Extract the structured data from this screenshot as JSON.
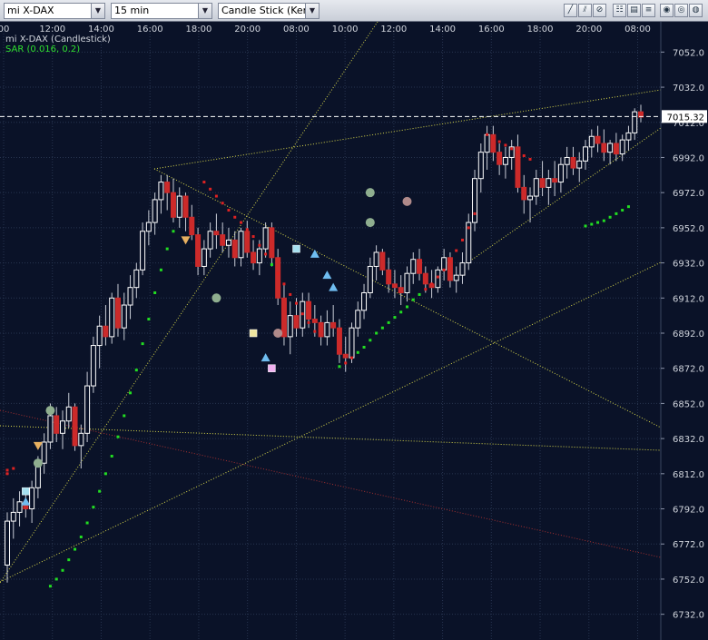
{
  "toolbar": {
    "symbol": "mi X-DAX",
    "interval": "15 min",
    "chart_type": "Candle Stick (Kerze",
    "tools": [
      "line-draw-icon",
      "parallel-draw-icon",
      "fibonacci-icon",
      "grid-icon",
      "table-icon",
      "zoom-in-icon",
      "zoom-out-icon",
      "settings-icon"
    ]
  },
  "legend": {
    "instrument": "mi X-DAX (Candlestick)",
    "indicator": "SAR (0.016, 0.2)"
  },
  "colors": {
    "background": "#0a1228",
    "grid": "#27344f",
    "candle_up": "#ffffff",
    "candle_down": "#cc2a2a",
    "sar_up": "#22dd22",
    "sar_down": "#dd2222",
    "trendline": "#d8d84a",
    "trendline_red": "#a53030",
    "price_line": "#ffffff"
  },
  "chart_data": {
    "type": "candlestick",
    "title": "mi X-DAX (Candlestick)",
    "xlabel": "",
    "ylabel": "",
    "ylim": [
      6722,
      7062
    ],
    "y_ticks": [
      7052,
      7032,
      7012,
      6992,
      6972,
      6952,
      6932,
      6912,
      6892,
      6872,
      6852,
      6832,
      6812,
      6792,
      6772,
      6752,
      6732
    ],
    "y_tick_labels": [
      "7052.0",
      "7032.0",
      "7012.0",
      "6992.0",
      "6972.0",
      "6952.0",
      "6932.0",
      "6912.0",
      "6892.0",
      "6872.0",
      "6852.0",
      "6832.0",
      "6812.0",
      "6792.0",
      "6772.0",
      "6752.0",
      "6732.0"
    ],
    "x_tick_labels": [
      "00",
      "12:00",
      "14:00",
      "16:00",
      "18:00",
      "20:00",
      "08:00",
      "10:00",
      "12:00",
      "14:00",
      "16:00",
      "18:00",
      "20:00",
      "08:00"
    ],
    "last_price": 7015.32,
    "last_price_label": "7015.32",
    "grid": true,
    "series": [
      {
        "name": "mi X-DAX (Candlestick)",
        "ohlc": [
          [
            6760,
            6790,
            6750,
            6785
          ],
          [
            6785,
            6798,
            6775,
            6790
          ],
          [
            6790,
            6802,
            6782,
            6796
          ],
          [
            6796,
            6803,
            6787,
            6792
          ],
          [
            6792,
            6808,
            6784,
            6804
          ],
          [
            6804,
            6822,
            6798,
            6818
          ],
          [
            6818,
            6835,
            6812,
            6830
          ],
          [
            6830,
            6852,
            6826,
            6845
          ],
          [
            6845,
            6850,
            6830,
            6835
          ],
          [
            6835,
            6848,
            6826,
            6842
          ],
          [
            6842,
            6858,
            6838,
            6850
          ],
          [
            6850,
            6852,
            6825,
            6828
          ],
          [
            6828,
            6840,
            6815,
            6835
          ],
          [
            6835,
            6870,
            6830,
            6862
          ],
          [
            6862,
            6890,
            6858,
            6885
          ],
          [
            6885,
            6902,
            6872,
            6896
          ],
          [
            6896,
            6908,
            6885,
            6890
          ],
          [
            6890,
            6915,
            6886,
            6912
          ],
          [
            6912,
            6920,
            6890,
            6895
          ],
          [
            6895,
            6915,
            6888,
            6908
          ],
          [
            6908,
            6925,
            6900,
            6918
          ],
          [
            6918,
            6932,
            6912,
            6928
          ],
          [
            6928,
            6955,
            6925,
            6950
          ],
          [
            6950,
            6962,
            6942,
            6955
          ],
          [
            6955,
            6972,
            6948,
            6968
          ],
          [
            6968,
            6982,
            6960,
            6978
          ],
          [
            6978,
            6982,
            6962,
            6972
          ],
          [
            6972,
            6980,
            6955,
            6958
          ],
          [
            6958,
            6975,
            6952,
            6970
          ],
          [
            6970,
            6972,
            6950,
            6958
          ],
          [
            6958,
            6965,
            6945,
            6948
          ],
          [
            6948,
            6952,
            6925,
            6930
          ],
          [
            6930,
            6945,
            6925,
            6940
          ],
          [
            6940,
            6955,
            6935,
            6950
          ],
          [
            6950,
            6960,
            6940,
            6948
          ],
          [
            6948,
            6955,
            6938,
            6942
          ],
          [
            6942,
            6952,
            6935,
            6945
          ],
          [
            6945,
            6950,
            6930,
            6935
          ],
          [
            6935,
            6952,
            6930,
            6950
          ],
          [
            6950,
            6956,
            6935,
            6938
          ],
          [
            6938,
            6945,
            6928,
            6932
          ],
          [
            6932,
            6945,
            6925,
            6940
          ],
          [
            6940,
            6955,
            6935,
            6952
          ],
          [
            6952,
            6955,
            6930,
            6935
          ],
          [
            6935,
            6940,
            6908,
            6912
          ],
          [
            6912,
            6920,
            6885,
            6890
          ],
          [
            6890,
            6910,
            6880,
            6902
          ],
          [
            6902,
            6912,
            6890,
            6895
          ],
          [
            6895,
            6915,
            6890,
            6910
          ],
          [
            6910,
            6915,
            6895,
            6900
          ],
          [
            6900,
            6908,
            6890,
            6898
          ],
          [
            6898,
            6902,
            6885,
            6890
          ],
          [
            6890,
            6905,
            6885,
            6898
          ],
          [
            6898,
            6908,
            6890,
            6895
          ],
          [
            6895,
            6900,
            6875,
            6880
          ],
          [
            6880,
            6890,
            6870,
            6878
          ],
          [
            6878,
            6898,
            6875,
            6895
          ],
          [
            6895,
            6910,
            6890,
            6905
          ],
          [
            6905,
            6920,
            6900,
            6915
          ],
          [
            6915,
            6935,
            6912,
            6930
          ],
          [
            6930,
            6942,
            6922,
            6938
          ],
          [
            6938,
            6940,
            6925,
            6928
          ],
          [
            6928,
            6935,
            6915,
            6920
          ],
          [
            6920,
            6928,
            6912,
            6918
          ],
          [
            6918,
            6925,
            6908,
            6915
          ],
          [
            6915,
            6930,
            6910,
            6926
          ],
          [
            6926,
            6938,
            6920,
            6934
          ],
          [
            6934,
            6940,
            6922,
            6926
          ],
          [
            6926,
            6930,
            6915,
            6920
          ],
          [
            6920,
            6928,
            6912,
            6918
          ],
          [
            6918,
            6930,
            6915,
            6928
          ],
          [
            6928,
            6940,
            6922,
            6935
          ],
          [
            6935,
            6938,
            6918,
            6922
          ],
          [
            6922,
            6930,
            6915,
            6925
          ],
          [
            6925,
            6938,
            6920,
            6932
          ],
          [
            6932,
            6960,
            6928,
            6955
          ],
          [
            6955,
            6985,
            6950,
            6980
          ],
          [
            6980,
            7000,
            6972,
            6995
          ],
          [
            6995,
            7010,
            6985,
            7005
          ],
          [
            7005,
            7010,
            6990,
            6995
          ],
          [
            6995,
            7000,
            6982,
            6988
          ],
          [
            6988,
            6998,
            6980,
            6992
          ],
          [
            6992,
            7002,
            6985,
            6998
          ],
          [
            6998,
            7005,
            6972,
            6975
          ],
          [
            6975,
            6982,
            6960,
            6968
          ],
          [
            6968,
            6975,
            6955,
            6970
          ],
          [
            6970,
            6985,
            6965,
            6980
          ],
          [
            6980,
            6990,
            6970,
            6975
          ],
          [
            6975,
            6985,
            6965,
            6980
          ],
          [
            6980,
            6990,
            6970,
            6978
          ],
          [
            6978,
            6992,
            6972,
            6988
          ],
          [
            6988,
            6998,
            6980,
            6992
          ],
          [
            6992,
            6998,
            6982,
            6986
          ],
          [
            6986,
            6995,
            6978,
            6990
          ],
          [
            6990,
            7002,
            6985,
            6998
          ],
          [
            6998,
            7008,
            6992,
            7004
          ],
          [
            7004,
            7010,
            6995,
            7000
          ],
          [
            7000,
            7008,
            6990,
            6995
          ],
          [
            6995,
            7002,
            6988,
            7000
          ],
          [
            7000,
            7006,
            6990,
            6994
          ],
          [
            6994,
            7005,
            6990,
            7002
          ],
          [
            7002,
            7010,
            6996,
            7006
          ],
          [
            7006,
            7020,
            7002,
            7018
          ],
          [
            7018,
            7022,
            7012,
            7015
          ]
        ]
      },
      {
        "name": "SAR (0.016, 0.2)",
        "type": "scatter",
        "points": [
          [
            0,
            6812
          ],
          [
            0,
            6814
          ],
          [
            1,
            6815
          ],
          [
            7,
            6748
          ],
          [
            8,
            6752
          ],
          [
            9,
            6757
          ],
          [
            10,
            6763
          ],
          [
            11,
            6769
          ],
          [
            12,
            6776
          ],
          [
            13,
            6784
          ],
          [
            14,
            6793
          ],
          [
            15,
            6802
          ],
          [
            16,
            6812
          ],
          [
            17,
            6822
          ],
          [
            18,
            6833
          ],
          [
            19,
            6845
          ],
          [
            20,
            6858
          ],
          [
            21,
            6871
          ],
          [
            22,
            6886
          ],
          [
            23,
            6900
          ],
          [
            24,
            6915
          ],
          [
            25,
            6928
          ],
          [
            26,
            6940
          ],
          [
            27,
            6950
          ],
          [
            32,
            6978
          ],
          [
            33,
            6974
          ],
          [
            34,
            6970
          ],
          [
            35,
            6966
          ],
          [
            36,
            6962
          ],
          [
            37,
            6958
          ],
          [
            38,
            6955
          ],
          [
            39,
            6951
          ],
          [
            40,
            6947
          ],
          [
            41,
            6942
          ],
          [
            42,
            6937
          ],
          [
            43,
            6931
          ],
          [
            44,
            6926
          ],
          [
            45,
            6920
          ],
          [
            46,
            6914
          ],
          [
            47,
            6909
          ],
          [
            48,
            6903
          ],
          [
            49,
            6898
          ],
          [
            50,
            6893
          ],
          [
            54,
            6873
          ],
          [
            55,
            6875
          ],
          [
            56,
            6878
          ],
          [
            57,
            6881
          ],
          [
            58,
            6884
          ],
          [
            59,
            6888
          ],
          [
            60,
            6892
          ],
          [
            61,
            6895
          ],
          [
            62,
            6898
          ],
          [
            63,
            6901
          ],
          [
            64,
            6904
          ],
          [
            65,
            6907
          ],
          [
            66,
            6911
          ],
          [
            67,
            6914
          ],
          [
            68,
            6917
          ],
          [
            69,
            6920
          ],
          [
            70,
            6924
          ],
          [
            71,
            6928
          ],
          [
            72,
            6933
          ],
          [
            73,
            6939
          ],
          [
            74,
            6945
          ],
          [
            75,
            6952
          ],
          [
            76,
            6960
          ],
          [
            78,
            7005
          ],
          [
            79,
            7003
          ],
          [
            80,
            7001
          ],
          [
            81,
            6999
          ],
          [
            82,
            6997
          ],
          [
            83,
            6995
          ],
          [
            84,
            6993
          ],
          [
            85,
            6991
          ],
          [
            94,
            6953
          ],
          [
            95,
            6954
          ],
          [
            96,
            6955
          ],
          [
            97,
            6956
          ],
          [
            98,
            6958
          ],
          [
            99,
            6960
          ],
          [
            100,
            6962
          ],
          [
            101,
            6964
          ]
        ]
      }
    ],
    "markers": [
      {
        "x": 5,
        "y": 6818,
        "kind": "circle",
        "color": "#8fae8f"
      },
      {
        "x": 5,
        "y": 6828,
        "kind": "triangle-down",
        "color": "#e8b060"
      },
      {
        "x": 7,
        "y": 6848,
        "kind": "circle",
        "color": "#8fae8f"
      },
      {
        "x": 3,
        "y": 6796,
        "kind": "triangle-up",
        "color": "#6fbdf0"
      },
      {
        "x": 3,
        "y": 6802,
        "kind": "square",
        "color": "#a6e0f0"
      },
      {
        "x": 29,
        "y": 6945,
        "kind": "triangle-down",
        "color": "#e8b060"
      },
      {
        "x": 34,
        "y": 6912,
        "kind": "circle",
        "color": "#8fae8f"
      },
      {
        "x": 40,
        "y": 6892,
        "kind": "square",
        "color": "#f0e6a0"
      },
      {
        "x": 44,
        "y": 6892,
        "kind": "circle",
        "color": "#b08a8a"
      },
      {
        "x": 42,
        "y": 6878,
        "kind": "triangle-up",
        "color": "#6fbdf0"
      },
      {
        "x": 43,
        "y": 6872,
        "kind": "square",
        "color": "#f0b0f0"
      },
      {
        "x": 47,
        "y": 6940,
        "kind": "square",
        "color": "#a6e0f0"
      },
      {
        "x": 50,
        "y": 6937,
        "kind": "triangle-up",
        "color": "#6fbdf0"
      },
      {
        "x": 52,
        "y": 6925,
        "kind": "triangle-up",
        "color": "#6fbdf0"
      },
      {
        "x": 53,
        "y": 6918,
        "kind": "triangle-up",
        "color": "#6fbdf0"
      },
      {
        "x": 59,
        "y": 6972,
        "kind": "circle",
        "color": "#8fae8f"
      },
      {
        "x": 59,
        "y": 6955,
        "kind": "circle",
        "color": "#8fae8f"
      },
      {
        "x": 65,
        "y": 6967,
        "kind": "circle",
        "color": "#b08a8a"
      }
    ]
  }
}
